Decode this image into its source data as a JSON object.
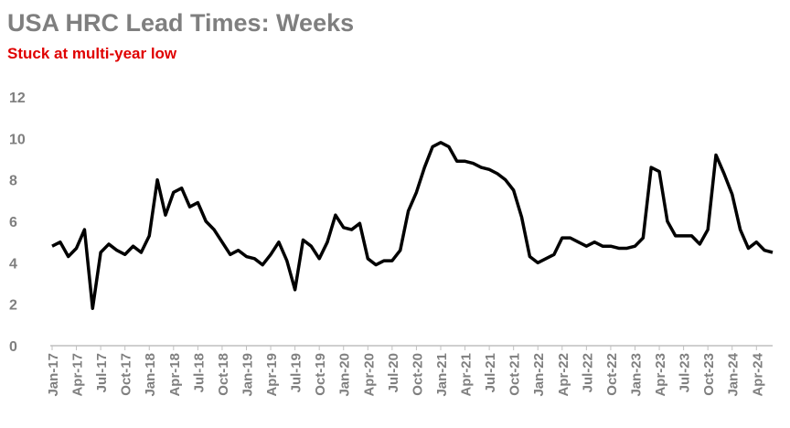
{
  "chart_data": {
    "type": "line",
    "title": "USA HRC Lead Times: Weeks",
    "subtitle": "Stuck at multi-year low",
    "categories": [
      "Jan-17",
      null,
      null,
      "Apr-17",
      null,
      null,
      "Jul-17",
      null,
      null,
      "Oct-17",
      null,
      null,
      "Jan-18",
      null,
      null,
      "Apr-18",
      null,
      null,
      "Jul-18",
      null,
      null,
      "Oct-18",
      null,
      null,
      "Jan-19",
      null,
      null,
      "Apr-19",
      null,
      null,
      "Jul-19",
      null,
      null,
      "Oct-19",
      null,
      null,
      "Jan-20",
      null,
      null,
      "Apr-20",
      null,
      null,
      "Jul-20",
      null,
      null,
      "Oct-20",
      null,
      null,
      "Jan-21",
      null,
      null,
      "Apr-21",
      null,
      null,
      "Jul-21",
      null,
      null,
      "Oct-21",
      null,
      null,
      "Jan-22",
      null,
      null,
      "Apr-22",
      null,
      null,
      "Jul-22",
      null,
      null,
      "Oct-22",
      null,
      null,
      "Jan-23",
      null,
      null,
      "Apr-23",
      null,
      null,
      "Jul-23",
      null,
      null,
      "Oct-23",
      null,
      null,
      "Jan-24",
      null,
      null,
      "Apr-24",
      null,
      null
    ],
    "values": [
      4.8,
      5.0,
      4.3,
      4.7,
      5.6,
      1.8,
      4.5,
      4.9,
      4.6,
      4.4,
      4.8,
      4.5,
      5.3,
      8.0,
      6.3,
      7.4,
      7.6,
      6.7,
      6.9,
      6.0,
      5.6,
      5.0,
      4.4,
      4.6,
      4.3,
      4.2,
      3.9,
      4.4,
      5.0,
      4.1,
      2.7,
      5.1,
      4.8,
      4.2,
      5.0,
      6.3,
      5.7,
      5.6,
      5.9,
      4.2,
      3.9,
      4.1,
      4.1,
      4.6,
      6.5,
      7.4,
      8.6,
      9.6,
      9.8,
      9.6,
      8.9,
      8.9,
      8.8,
      8.6,
      8.5,
      8.3,
      8.0,
      7.5,
      6.2,
      4.3,
      4.0,
      4.2,
      4.4,
      5.2,
      5.2,
      5.0,
      4.8,
      5.0,
      4.8,
      4.8,
      4.7,
      4.7,
      4.8,
      5.2,
      8.6,
      8.4,
      6.0,
      5.3,
      5.3,
      5.3,
      4.9,
      5.6,
      9.2,
      8.3,
      7.3,
      5.6,
      4.7,
      5.0,
      4.6,
      4.5
    ],
    "color": "#000000",
    "ylim": [
      0,
      12
    ],
    "yticks": [
      0,
      2,
      4,
      6,
      8,
      10,
      12
    ],
    "grid": false
  }
}
